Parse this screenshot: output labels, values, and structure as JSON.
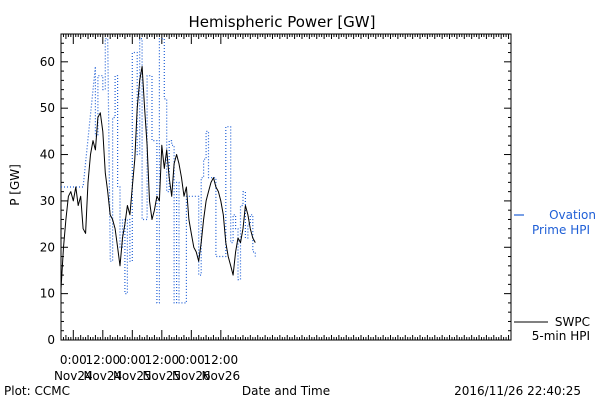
{
  "chart_data": {
    "type": "line",
    "title": "Hemispheric Power [GW]",
    "ylabel": "P [GW]",
    "xlabel": "Date and Time",
    "ylim": [
      0,
      66
    ],
    "yticks": [
      0,
      10,
      20,
      30,
      40,
      50,
      60
    ],
    "xlim": [
      -5,
      178
    ],
    "x_unit": "hours since 2016-11-24 00:00",
    "x_tick_hours": [
      0,
      12,
      24,
      36,
      48,
      60
    ],
    "x_tick_labels": [
      [
        "0:00",
        "Nov24"
      ],
      [
        "12:00",
        "Nov24"
      ],
      [
        "0:00",
        "Nov25"
      ],
      [
        "12:00",
        "Nov25"
      ],
      [
        "0:00",
        "Nov26"
      ],
      [
        "12:00",
        "Nov26"
      ]
    ],
    "grid": false,
    "series": [
      {
        "name": "Ovation Prime HPI",
        "style": "dotted",
        "color": "#1f5fd6",
        "legend_line1": "Ovation",
        "legend_line2": "Prime HPI",
        "x": [
          -5,
          4,
          9,
          9,
          10,
          10,
          12,
          12,
          13,
          13,
          14,
          15,
          15,
          16,
          16,
          17,
          17,
          18,
          18,
          19,
          19,
          20,
          20,
          21,
          21,
          22,
          22,
          23,
          23,
          24,
          24,
          26,
          26,
          27,
          27,
          28,
          28,
          30,
          30,
          32,
          32,
          34,
          34,
          35,
          35,
          37,
          37,
          38,
          38,
          39,
          39,
          40,
          40,
          41,
          41,
          42,
          42,
          43,
          43,
          46,
          46,
          51,
          51,
          52,
          52,
          53,
          53,
          54,
          54,
          55,
          55,
          58,
          58,
          62,
          62,
          64,
          64,
          65,
          65,
          66,
          66,
          67,
          67,
          68,
          68,
          69,
          69,
          70,
          70,
          71,
          71,
          72,
          72,
          73,
          73,
          74,
          74
        ],
        "y": [
          33,
          33,
          59,
          44,
          44,
          57,
          57,
          54,
          54,
          65,
          65,
          19,
          17,
          17,
          48,
          48,
          57,
          57,
          33,
          33,
          20,
          20,
          26,
          26,
          10,
          10,
          26,
          26,
          17,
          17,
          62,
          62,
          40,
          40,
          65,
          65,
          26,
          26,
          57,
          57,
          43,
          43,
          8,
          8,
          65,
          65,
          52,
          52,
          32,
          32,
          43,
          43,
          42,
          42,
          8,
          8,
          34,
          34,
          8,
          8,
          31,
          31,
          14,
          14,
          35,
          35,
          39,
          39,
          45,
          45,
          35,
          35,
          18,
          18,
          46,
          46,
          21,
          21,
          27,
          27,
          24,
          24,
          13,
          13,
          29,
          29,
          32,
          32,
          22,
          22,
          25,
          25,
          27,
          27,
          19,
          19,
          18
        ]
      },
      {
        "name": "SWPC 5-min HPI",
        "style": "solid",
        "color": "#000000",
        "legend_line1": "SWPC",
        "legend_line2": "5-min HPI",
        "x": [
          -5,
          -4,
          -3,
          -2,
          -1,
          0,
          1,
          2,
          3,
          4,
          5,
          6,
          7,
          8,
          9,
          10,
          11,
          12,
          13,
          14,
          15,
          16,
          17,
          18,
          19,
          20,
          21,
          22,
          23,
          24,
          25,
          26,
          27,
          28,
          29,
          30,
          31,
          32,
          33,
          34,
          35,
          36,
          37,
          38,
          39,
          40,
          41,
          42,
          43,
          44,
          45,
          46,
          47,
          48,
          49,
          50,
          51,
          52,
          53,
          54,
          55,
          56,
          57,
          58,
          59,
          60,
          61,
          62,
          63,
          64,
          65,
          66,
          67,
          68,
          69,
          70,
          71,
          72,
          73,
          74
        ],
        "y": [
          11,
          20,
          26,
          31,
          32,
          30,
          33,
          29,
          31,
          24,
          23,
          34,
          40,
          43,
          41,
          48,
          49,
          45,
          36,
          32,
          27,
          26,
          24,
          20,
          16,
          22,
          25,
          29,
          27,
          33,
          39,
          50,
          56,
          59,
          50,
          42,
          30,
          26,
          28,
          31,
          30,
          42,
          37,
          41,
          35,
          31,
          38,
          40,
          38,
          35,
          31,
          33,
          26,
          23,
          20,
          19,
          17,
          21,
          26,
          30,
          32,
          34,
          35,
          33,
          32,
          30,
          27,
          21,
          18,
          16,
          14,
          19,
          22,
          21,
          24,
          29,
          27,
          24,
          22,
          21
        ]
      }
    ]
  },
  "footer": {
    "plot_credit": "Plot: CCMC",
    "timestamp": "2016/11/26 22:40:25"
  }
}
